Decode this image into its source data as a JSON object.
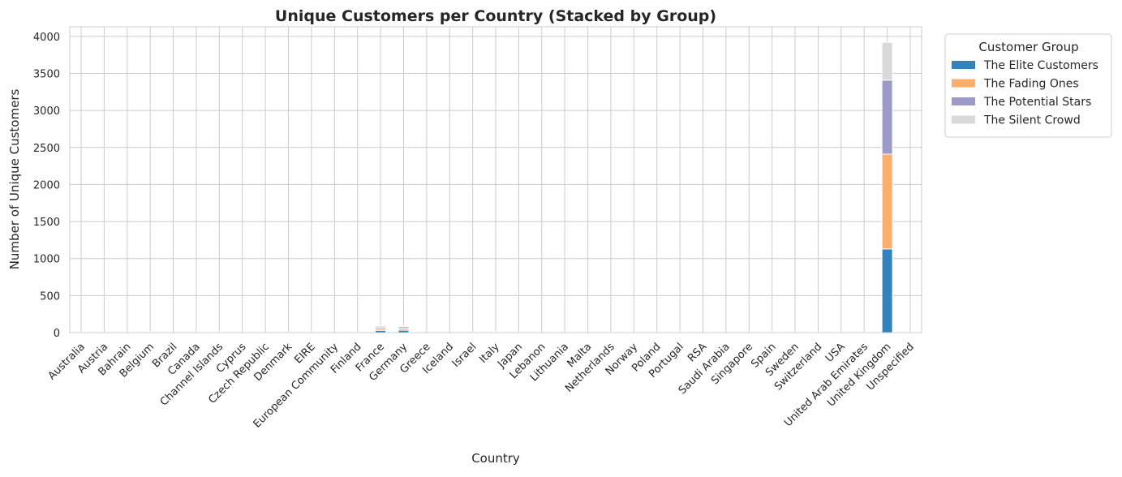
{
  "chart_data": {
    "type": "bar",
    "stacked": true,
    "title": "Unique Customers per Country (Stacked by Group)",
    "xlabel": "Country",
    "ylabel": "Number of Unique Customers",
    "ylim": [
      0,
      4130
    ],
    "yticks": [
      0,
      500,
      1000,
      1500,
      2000,
      2500,
      3000,
      3500,
      4000
    ],
    "grid": true,
    "legend": {
      "title": "Customer Group",
      "placement": "outside-top-right"
    },
    "categories": [
      "Australia",
      "Austria",
      "Bahrain",
      "Belgium",
      "Brazil",
      "Canada",
      "Channel Islands",
      "Cyprus",
      "Czech Republic",
      "Denmark",
      "EIRE",
      "European Community",
      "Finland",
      "France",
      "Germany",
      "Greece",
      "Iceland",
      "Israel",
      "Italy",
      "Japan",
      "Lebanon",
      "Lithuania",
      "Malta",
      "Netherlands",
      "Norway",
      "Poland",
      "Portugal",
      "RSA",
      "Saudi Arabia",
      "Singapore",
      "Spain",
      "Sweden",
      "Switzerland",
      "USA",
      "United Arab Emirates",
      "United Kingdom",
      "Unspecified"
    ],
    "series": [
      {
        "name": "The Elite Customers",
        "color": "#3182bd",
        "values": [
          1,
          1,
          0,
          2,
          0,
          0,
          1,
          1,
          0,
          1,
          1,
          0,
          1,
          30,
          32,
          0,
          0,
          0,
          2,
          1,
          0,
          0,
          0,
          1,
          1,
          0,
          1,
          0,
          0,
          0,
          2,
          1,
          2,
          0,
          0,
          1130,
          0
        ]
      },
      {
        "name": "The Fading Ones",
        "color": "#fdae6b",
        "values": [
          2,
          1,
          1,
          3,
          0,
          1,
          1,
          1,
          0,
          1,
          0,
          0,
          1,
          25,
          26,
          0,
          0,
          1,
          2,
          1,
          0,
          0,
          0,
          1,
          1,
          1,
          2,
          0,
          0,
          0,
          3,
          1,
          2,
          1,
          1,
          1280,
          1
        ]
      },
      {
        "name": "The Potential Stars",
        "color": "#9e9ac8",
        "values": [
          2,
          1,
          0,
          3,
          0,
          1,
          2,
          1,
          1,
          1,
          1,
          0,
          1,
          20,
          22,
          0,
          0,
          1,
          2,
          1,
          0,
          1,
          0,
          1,
          1,
          1,
          2,
          0,
          0,
          0,
          3,
          1,
          2,
          1,
          1,
          1000,
          1
        ]
      },
      {
        "name": "The Silent Crowd",
        "color": "#d9d9d9",
        "values": [
          2,
          1,
          1,
          3,
          1,
          1,
          2,
          1,
          1,
          2,
          1,
          1,
          2,
          18,
          15,
          1,
          1,
          1,
          3,
          2,
          1,
          0,
          1,
          2,
          2,
          2,
          3,
          1,
          1,
          1,
          4,
          2,
          3,
          2,
          1,
          510,
          1
        ]
      }
    ]
  }
}
